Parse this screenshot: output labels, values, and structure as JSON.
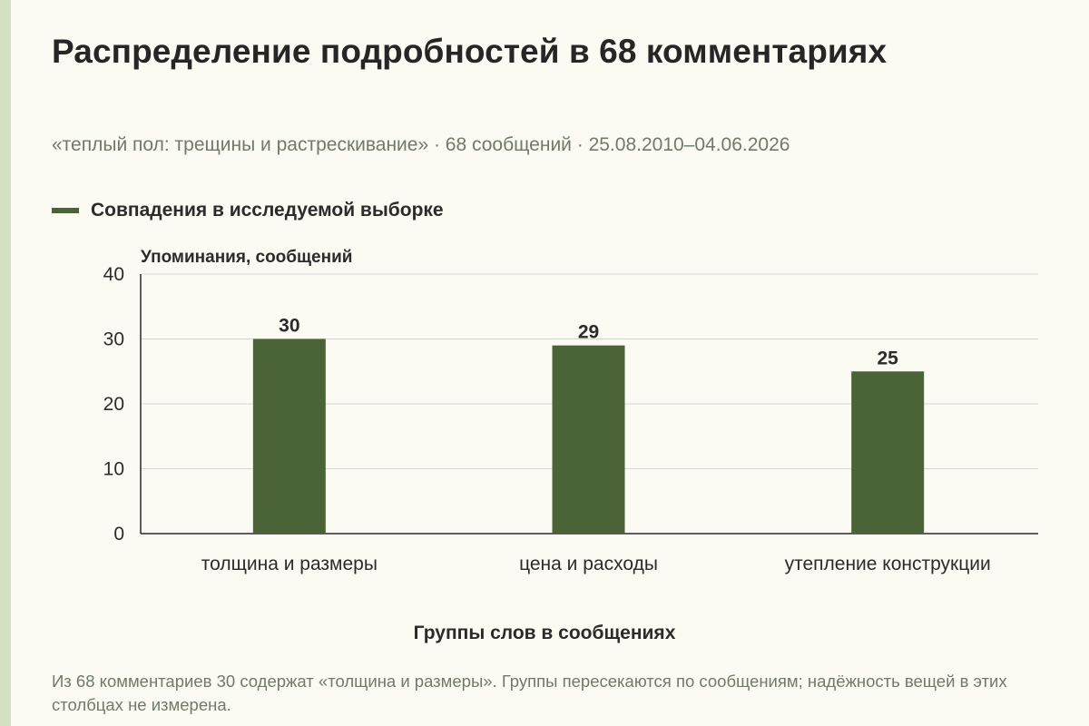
{
  "title": "Распределение подробностей в 68 комментариях",
  "subtitle": "«теплый пол: трещины и растрескивание» · 68 сообщений · 25.08.2010–04.06.2026",
  "note": "Из 68 комментариев 30 содержат «толщина и размеры». Группы пересекаются по сообщениям; надёжность вещей в этих столбцах не измерена.",
  "colors": {
    "bar": "#4a6438",
    "background": "#fcfbf3",
    "accent_stripe": "#d4e1c1",
    "grid": "#d6d6d0"
  },
  "chart_data": {
    "type": "bar",
    "title": "Распределение подробностей в 68 комментариях",
    "xlabel": "Группы слов в сообщениях",
    "ylabel": "Упоминания, сообщений",
    "categories": [
      "толщина и размеры",
      "цена и расходы",
      "утепление конструкции"
    ],
    "series": [
      {
        "name": "Совпадения в исследуемой выборке",
        "values": [
          30,
          29,
          25
        ]
      }
    ],
    "ylim": [
      0,
      40
    ],
    "yticks": [
      0,
      10,
      20,
      30,
      40
    ],
    "grid": true,
    "legend": "top-left",
    "data_labels": true
  }
}
